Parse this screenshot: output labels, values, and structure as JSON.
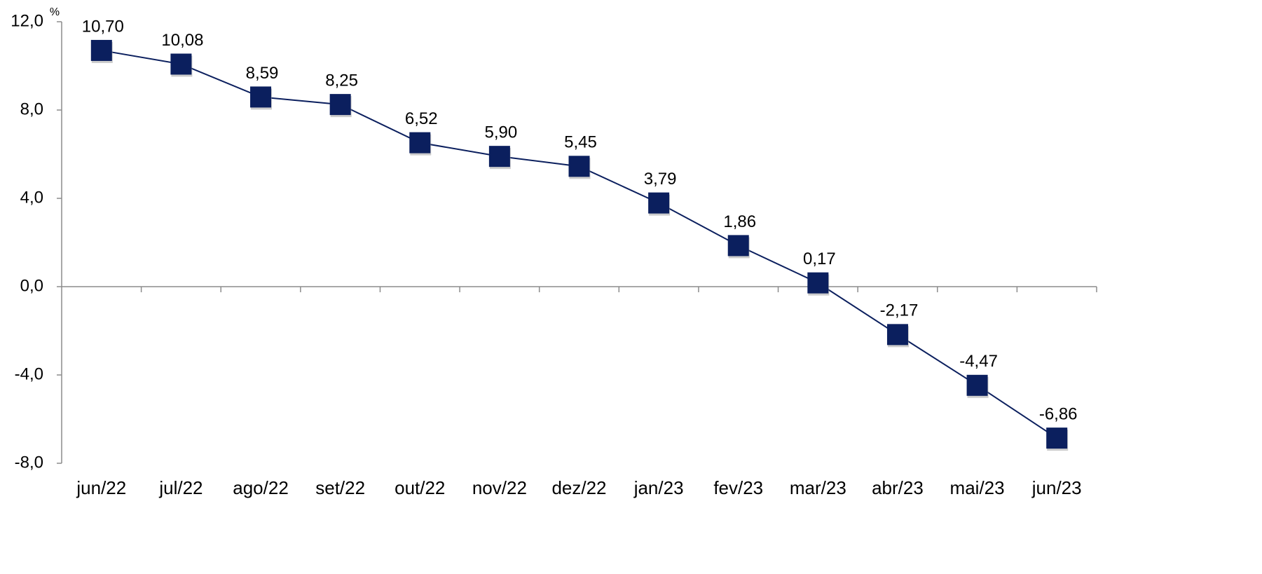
{
  "chart_data": {
    "type": "line",
    "unit_label": "%",
    "categories": [
      "jun/22",
      "jul/22",
      "ago/22",
      "set/22",
      "out/22",
      "nov/22",
      "dez/22",
      "jan/23",
      "fev/23",
      "mar/23",
      "abr/23",
      "mai/23",
      "jun/23"
    ],
    "values": [
      10.7,
      10.08,
      8.59,
      8.25,
      6.52,
      5.9,
      5.45,
      3.79,
      1.86,
      0.17,
      -2.17,
      -4.47,
      -6.86
    ],
    "value_labels": [
      "10,70",
      "10,08",
      "8,59",
      "8,25",
      "6,52",
      "5,90",
      "5,45",
      "3,79",
      "1,86",
      "0,17",
      "-2,17",
      "-4,47",
      "-6,86"
    ],
    "color": "#0b1f5e",
    "ylim": [
      -8,
      12
    ],
    "yticks": [
      {
        "value": -8,
        "label": "-8,0"
      },
      {
        "value": -4,
        "label": "-4,0"
      },
      {
        "value": 0,
        "label": "0,0"
      },
      {
        "value": 4,
        "label": "4,0"
      },
      {
        "value": 8,
        "label": "8,0"
      },
      {
        "value": 12,
        "label": "12,0"
      }
    ],
    "grid": false
  }
}
